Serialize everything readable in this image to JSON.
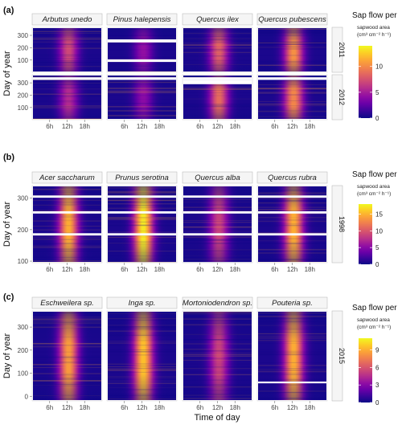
{
  "x_axis_title": "Time of day",
  "colors": {
    "scale": [
      "#0d0887",
      "#3a049a",
      "#6a00a8",
      "#900da4",
      "#b12a90",
      "#cc4778",
      "#e16462",
      "#f2844b",
      "#fca636",
      "#fcce25",
      "#f0f921"
    ],
    "strip_fill": "#f5f5f5",
    "strip_border": "#bdbdbd",
    "tick_color": "#6f6f6f"
  },
  "chart_data": [
    {
      "type": "heatmap",
      "panel_label": "(a)",
      "ylabel": "Day of year",
      "xlabel": "",
      "x_ticks": [
        "6h",
        "12h",
        "18h"
      ],
      "x_range_hours": [
        0,
        24
      ],
      "species": [
        "Arbutus unedo",
        "Pinus halepensis",
        "Quercus ilex",
        "Quercus pubescens"
      ],
      "years": [
        "2011",
        "2012"
      ],
      "rows": [
        {
          "y_ticks": [
            "100",
            "200",
            "300"
          ],
          "y_range": [
            1,
            365
          ]
        },
        {
          "y_ticks": [
            "100",
            "200",
            "300"
          ],
          "y_range": [
            1,
            366
          ]
        }
      ],
      "legend": {
        "title": "Sap flow per",
        "subtitle_line1": "sapwood area",
        "subtitle_line2": "(cm³ cm⁻² h⁻¹)",
        "ticks": [
          "0",
          "5",
          "10"
        ],
        "tick_values": [
          0,
          5,
          10
        ],
        "max": 14
      },
      "peak_intensity": [
        [
          0.48,
          0.28,
          0.55,
          0.72
        ],
        [
          0.38,
          0.26,
          0.6,
          0.68
        ]
      ]
    },
    {
      "type": "heatmap",
      "panel_label": "(b)",
      "ylabel": "Day of year",
      "xlabel": "",
      "x_ticks": [
        "6h",
        "12h",
        "18h"
      ],
      "x_range_hours": [
        0,
        24
      ],
      "species": [
        "Acer saccharum",
        "Prunus serotina",
        "Quercus alba",
        "Quercus rubra"
      ],
      "years": [
        "1998"
      ],
      "rows": [
        {
          "y_ticks": [
            "100",
            "200",
            "300"
          ],
          "y_range": [
            95,
            340
          ]
        }
      ],
      "legend": {
        "title": "Sap flow per",
        "subtitle_line1": "sapwood area",
        "subtitle_line2": "(cm³ cm⁻² h⁻¹)",
        "ticks": [
          "0",
          "5",
          "10",
          "15"
        ],
        "tick_values": [
          0,
          5,
          10,
          15
        ],
        "max": 18
      },
      "peak_intensity": [
        [
          0.8,
          0.95,
          0.45,
          0.8
        ]
      ]
    },
    {
      "type": "heatmap",
      "panel_label": "(c)",
      "ylabel": "Day of year",
      "xlabel": "Time of day",
      "x_ticks": [
        "6h",
        "12h",
        "18h"
      ],
      "x_range_hours": [
        0,
        24
      ],
      "species": [
        "Eschweilera sp.",
        "Inga sp.",
        "Mortoniodendron sp.",
        "Pouteria sp."
      ],
      "years": [
        "2015"
      ],
      "rows": [
        {
          "y_ticks": [
            "0",
            "100",
            "200",
            "300"
          ],
          "y_range": [
            -20,
            370
          ]
        }
      ],
      "legend": {
        "title": "Sap flow per",
        "subtitle_line1": "sapwood area",
        "subtitle_line2": "(cm³ cm⁻² h⁻¹)",
        "ticks": [
          "0",
          "3",
          "6",
          "9"
        ],
        "tick_values": [
          0,
          3,
          6,
          9
        ],
        "max": 11
      },
      "peak_intensity": [
        [
          0.75,
          0.85,
          0.45,
          0.8
        ]
      ]
    }
  ]
}
